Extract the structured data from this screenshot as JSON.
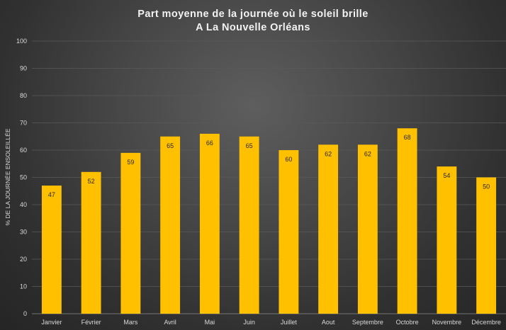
{
  "chart_data": {
    "type": "bar",
    "title": [
      "Part moyenne de la journée où le soleil brille",
      "A La Nouvelle Orléans"
    ],
    "ylabel": "% DE LA JOURNÉE ENSOLEILLÉE",
    "xlabel": "",
    "ylim": [
      0,
      100
    ],
    "yticks": [
      0,
      10,
      20,
      30,
      40,
      50,
      60,
      70,
      80,
      90,
      100
    ],
    "grid": true,
    "legend": "none",
    "categories": [
      "Janvier",
      "Février",
      "Mars",
      "Avril",
      "Mai",
      "Juin",
      "Juillet",
      "Aout",
      "Septembre",
      "Octobre",
      "Novembre",
      "Décembre"
    ],
    "values": [
      47,
      52,
      59,
      65,
      66,
      65,
      60,
      62,
      62,
      68,
      54,
      50
    ],
    "bar_color": "#ffc000"
  }
}
